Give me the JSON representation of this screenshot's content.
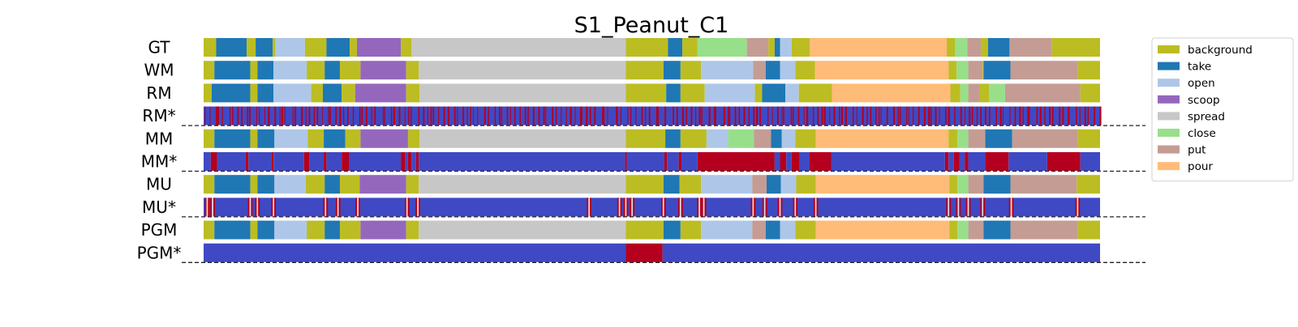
{
  "chart_data": {
    "type": "segmentation_timeline",
    "title": "S1_Peanut_C1",
    "xlim": [
      0,
      1000
    ],
    "colors": {
      "background": "#bcbd22",
      "take": "#1f77b4",
      "open": "#aec7e8",
      "scoop": "#9467bd",
      "spread": "#c7c7c7",
      "close": "#98df8a",
      "put": "#c49c94",
      "pour": "#ffbb78",
      "certainty_low": "#3f49c4",
      "certainty_high": "#b4001e"
    },
    "legend": {
      "placement": "right",
      "items": [
        "background",
        "take",
        "open",
        "scoop",
        "spread",
        "close",
        "put",
        "pour"
      ]
    },
    "rows": [
      {
        "label": "GT",
        "kind": "labels",
        "segments": [
          [
            "background",
            0,
            14
          ],
          [
            "take",
            14,
            48
          ],
          [
            "background",
            48,
            58
          ],
          [
            "take",
            58,
            77
          ],
          [
            "background",
            77,
            80
          ],
          [
            "open",
            80,
            113
          ],
          [
            "background",
            113,
            137
          ],
          [
            "take",
            137,
            163
          ],
          [
            "background",
            163,
            171
          ],
          [
            "scoop",
            171,
            220
          ],
          [
            "background",
            220,
            232
          ],
          [
            "spread",
            232,
            471
          ],
          [
            "background",
            471,
            518
          ],
          [
            "take",
            518,
            534
          ],
          [
            "background",
            534,
            551
          ],
          [
            "close",
            551,
            606
          ],
          [
            "put",
            606,
            630
          ],
          [
            "background",
            630,
            637
          ],
          [
            "take",
            637,
            643
          ],
          [
            "open",
            643,
            656
          ],
          [
            "background",
            656,
            676
          ],
          [
            "pour",
            676,
            829
          ],
          [
            "background",
            829,
            838
          ],
          [
            "close",
            838,
            852
          ],
          [
            "put",
            852,
            867
          ],
          [
            "background",
            867,
            875
          ],
          [
            "take",
            875,
            899
          ],
          [
            "put",
            899,
            946
          ],
          [
            "background",
            946,
            1000
          ]
        ]
      },
      {
        "label": "WM",
        "kind": "labels",
        "segments": [
          [
            "background",
            0,
            12
          ],
          [
            "take",
            12,
            52
          ],
          [
            "background",
            52,
            60
          ],
          [
            "take",
            60,
            78
          ],
          [
            "open",
            78,
            115
          ],
          [
            "background",
            115,
            135
          ],
          [
            "take",
            135,
            152
          ],
          [
            "background",
            152,
            175
          ],
          [
            "scoop",
            175,
            226
          ],
          [
            "background",
            226,
            240
          ],
          [
            "spread",
            240,
            471
          ],
          [
            "background",
            471,
            513
          ],
          [
            "take",
            513,
            532
          ],
          [
            "background",
            532,
            555
          ],
          [
            "open",
            555,
            613
          ],
          [
            "put",
            613,
            627
          ],
          [
            "take",
            627,
            643
          ],
          [
            "open",
            643,
            660
          ],
          [
            "background",
            660,
            682
          ],
          [
            "pour",
            682,
            831
          ],
          [
            "background",
            831,
            840
          ],
          [
            "close",
            840,
            853
          ],
          [
            "put",
            853,
            869
          ],
          [
            "background",
            869,
            870
          ],
          [
            "take",
            870,
            900
          ],
          [
            "put",
            900,
            975
          ],
          [
            "background",
            975,
            1000
          ]
        ]
      },
      {
        "label": "RM",
        "kind": "labels",
        "segments": [
          [
            "background",
            0,
            9
          ],
          [
            "take",
            9,
            52
          ],
          [
            "background",
            52,
            60
          ],
          [
            "take",
            60,
            78
          ],
          [
            "open",
            78,
            120
          ],
          [
            "background",
            120,
            133
          ],
          [
            "take",
            133,
            154
          ],
          [
            "background",
            154,
            169
          ],
          [
            "scoop",
            169,
            226
          ],
          [
            "background",
            226,
            241
          ],
          [
            "spread",
            241,
            471
          ],
          [
            "background",
            471,
            516
          ],
          [
            "take",
            516,
            532
          ],
          [
            "background",
            532,
            559
          ],
          [
            "open",
            559,
            615
          ],
          [
            "background",
            615,
            623
          ],
          [
            "take",
            623,
            649
          ],
          [
            "open",
            649,
            664
          ],
          [
            "background",
            664,
            701
          ],
          [
            "pour",
            701,
            833
          ],
          [
            "background",
            833,
            844
          ],
          [
            "close",
            844,
            853
          ],
          [
            "put",
            853,
            866
          ],
          [
            "background",
            866,
            876
          ],
          [
            "close",
            876,
            894
          ],
          [
            "put",
            894,
            978
          ],
          [
            "background",
            978,
            1000
          ]
        ]
      },
      {
        "label": "RM*",
        "kind": "certainty",
        "dashed": true,
        "pattern": {
          "type": "stripes",
          "count": 200,
          "seed": 11
        }
      },
      {
        "label": "MM",
        "kind": "labels",
        "segments": [
          [
            "background",
            0,
            12
          ],
          [
            "take",
            12,
            52
          ],
          [
            "background",
            52,
            60
          ],
          [
            "take",
            60,
            79
          ],
          [
            "open",
            79,
            116
          ],
          [
            "background",
            116,
            134
          ],
          [
            "take",
            134,
            158
          ],
          [
            "background",
            158,
            175
          ],
          [
            "scoop",
            175,
            228
          ],
          [
            "background",
            228,
            241
          ],
          [
            "spread",
            241,
            471
          ],
          [
            "background",
            471,
            515
          ],
          [
            "take",
            515,
            532
          ],
          [
            "background",
            532,
            561
          ],
          [
            "open",
            561,
            585
          ],
          [
            "close",
            585,
            614
          ],
          [
            "put",
            614,
            633
          ],
          [
            "take",
            633,
            645
          ],
          [
            "open",
            645,
            660
          ],
          [
            "background",
            660,
            683
          ],
          [
            "pour",
            683,
            831
          ],
          [
            "background",
            831,
            841
          ],
          [
            "close",
            841,
            853
          ],
          [
            "put",
            853,
            872
          ],
          [
            "take",
            872,
            902
          ],
          [
            "put",
            902,
            975
          ],
          [
            "background",
            975,
            1000
          ]
        ]
      },
      {
        "label": "MM*",
        "kind": "certainty",
        "dashed": true,
        "segments": [
          [
            0,
            8,
            "low"
          ],
          [
            8,
            15,
            "high"
          ],
          [
            15,
            47,
            "low"
          ],
          [
            47,
            50,
            "high"
          ],
          [
            50,
            76,
            "low"
          ],
          [
            76,
            78,
            "high"
          ],
          [
            78,
            112,
            "low"
          ],
          [
            112,
            118,
            "high"
          ],
          [
            118,
            134,
            "low"
          ],
          [
            134,
            137,
            "high"
          ],
          [
            137,
            154,
            "low"
          ],
          [
            154,
            162,
            "high"
          ],
          [
            162,
            220,
            "low"
          ],
          [
            220,
            225,
            "high"
          ],
          [
            225,
            228,
            "low"
          ],
          [
            228,
            232,
            "high"
          ],
          [
            232,
            237,
            "low"
          ],
          [
            237,
            240,
            "high"
          ],
          [
            240,
            470,
            "low"
          ],
          [
            470,
            472,
            "high"
          ],
          [
            472,
            514,
            "low"
          ],
          [
            514,
            517,
            "high"
          ],
          [
            517,
            530,
            "low"
          ],
          [
            530,
            533,
            "high"
          ],
          [
            533,
            551,
            "low"
          ],
          [
            551,
            637,
            "high"
          ],
          [
            637,
            643,
            "low"
          ],
          [
            643,
            650,
            "high"
          ],
          [
            650,
            656,
            "low"
          ],
          [
            656,
            665,
            "high"
          ],
          [
            665,
            676,
            "low"
          ],
          [
            676,
            700,
            "high"
          ],
          [
            700,
            827,
            "low"
          ],
          [
            827,
            831,
            "high"
          ],
          [
            831,
            837,
            "low"
          ],
          [
            837,
            843,
            "high"
          ],
          [
            843,
            849,
            "low"
          ],
          [
            849,
            853,
            "high"
          ],
          [
            853,
            872,
            "low"
          ],
          [
            872,
            898,
            "high"
          ],
          [
            898,
            941,
            "low"
          ],
          [
            941,
            978,
            "high"
          ],
          [
            978,
            1000,
            "low"
          ]
        ]
      },
      {
        "label": "MU",
        "kind": "labels",
        "segments": [
          [
            "background",
            0,
            12
          ],
          [
            "take",
            12,
            52
          ],
          [
            "background",
            52,
            60
          ],
          [
            "take",
            60,
            79
          ],
          [
            "open",
            79,
            114
          ],
          [
            "background",
            114,
            135
          ],
          [
            "take",
            135,
            152
          ],
          [
            "background",
            152,
            174
          ],
          [
            "scoop",
            174,
            226
          ],
          [
            "background",
            226,
            240
          ],
          [
            "spread",
            240,
            471
          ],
          [
            "background",
            471,
            513
          ],
          [
            "take",
            513,
            531
          ],
          [
            "background",
            531,
            555
          ],
          [
            "open",
            555,
            612
          ],
          [
            "put",
            612,
            628
          ],
          [
            "take",
            628,
            644
          ],
          [
            "open",
            644,
            661
          ],
          [
            "background",
            661,
            683
          ],
          [
            "pour",
            683,
            832
          ],
          [
            "background",
            832,
            841
          ],
          [
            "close",
            841,
            853
          ],
          [
            "put",
            853,
            870
          ],
          [
            "take",
            870,
            900
          ],
          [
            "put",
            900,
            974
          ],
          [
            "background",
            974,
            1000
          ]
        ]
      },
      {
        "label": "MU*",
        "kind": "certainty",
        "dashed": true,
        "boundaries": [
          4,
          10,
          52,
          60,
          78,
          136,
          150,
          172,
          227,
          239,
          430,
          464,
          471,
          478,
          513,
          532,
          553,
          558,
          613,
          626,
          643,
          660,
          683,
          831,
          842,
          853,
          869,
          901,
          975
        ]
      },
      {
        "label": "PGM",
        "kind": "labels",
        "segments": [
          [
            "background",
            0,
            12
          ],
          [
            "take",
            12,
            52
          ],
          [
            "background",
            52,
            60
          ],
          [
            "take",
            60,
            79
          ],
          [
            "open",
            79,
            115
          ],
          [
            "background",
            115,
            135
          ],
          [
            "take",
            135,
            152
          ],
          [
            "background",
            152,
            175
          ],
          [
            "scoop",
            175,
            226
          ],
          [
            "background",
            226,
            240
          ],
          [
            "spread",
            240,
            471
          ],
          [
            "background",
            471,
            513
          ],
          [
            "take",
            513,
            532
          ],
          [
            "background",
            532,
            555
          ],
          [
            "open",
            555,
            612
          ],
          [
            "put",
            612,
            627
          ],
          [
            "take",
            627,
            643
          ],
          [
            "open",
            643,
            660
          ],
          [
            "background",
            660,
            683
          ],
          [
            "pour",
            683,
            832
          ],
          [
            "background",
            832,
            841
          ],
          [
            "close",
            841,
            853
          ],
          [
            "put",
            853,
            870
          ],
          [
            "take",
            870,
            900
          ],
          [
            "put",
            900,
            975
          ],
          [
            "background",
            975,
            1000
          ]
        ]
      },
      {
        "label": "PGM*",
        "kind": "certainty",
        "dashed": true,
        "segments": [
          [
            0,
            471,
            "low"
          ],
          [
            471,
            512,
            "high"
          ],
          [
            512,
            1000,
            "low"
          ]
        ]
      }
    ]
  }
}
